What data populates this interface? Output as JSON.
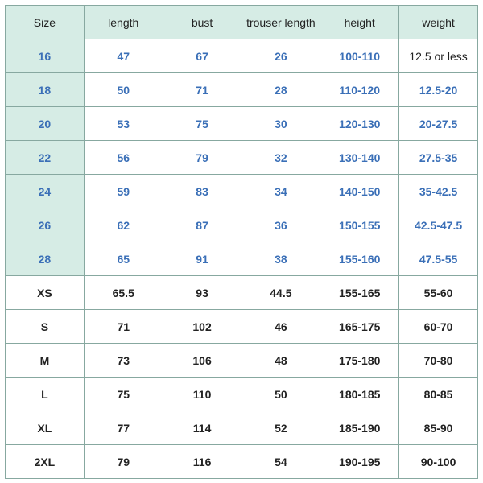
{
  "type": "table",
  "colors": {
    "header_bg": "#d6ece5",
    "border": "#87a8a0",
    "kid_text": "#3a6fb7",
    "adult_text": "#222222",
    "bg": "#ffffff"
  },
  "columns": [
    "Size",
    "length",
    "bust",
    "trouser length",
    "height",
    "weight"
  ],
  "kid_rows": [
    {
      "size": "16",
      "length": "47",
      "bust": "67",
      "trouser": "26",
      "height": "100-110",
      "weight": "12.5 or less",
      "weight_plain": true
    },
    {
      "size": "18",
      "length": "50",
      "bust": "71",
      "trouser": "28",
      "height": "110-120",
      "weight": "12.5-20"
    },
    {
      "size": "20",
      "length": "53",
      "bust": "75",
      "trouser": "30",
      "height": "120-130",
      "weight": "20-27.5"
    },
    {
      "size": "22",
      "length": "56",
      "bust": "79",
      "trouser": "32",
      "height": "130-140",
      "weight": "27.5-35"
    },
    {
      "size": "24",
      "length": "59",
      "bust": "83",
      "trouser": "34",
      "height": "140-150",
      "weight": "35-42.5"
    },
    {
      "size": "26",
      "length": "62",
      "bust": "87",
      "trouser": "36",
      "height": "150-155",
      "weight": "42.5-47.5"
    },
    {
      "size": "28",
      "length": "65",
      "bust": "91",
      "trouser": "38",
      "height": "155-160",
      "weight": "47.5-55"
    }
  ],
  "adult_rows": [
    {
      "size": "XS",
      "length": "65.5",
      "bust": "93",
      "trouser": "44.5",
      "height": "155-165",
      "weight": "55-60"
    },
    {
      "size": "S",
      "length": "71",
      "bust": "102",
      "trouser": "46",
      "height": "165-175",
      "weight": "60-70"
    },
    {
      "size": "M",
      "length": "73",
      "bust": "106",
      "trouser": "48",
      "height": "175-180",
      "weight": "70-80"
    },
    {
      "size": "L",
      "length": "75",
      "bust": "110",
      "trouser": "50",
      "height": "180-185",
      "weight": "80-85"
    },
    {
      "size": "XL",
      "length": "77",
      "bust": "114",
      "trouser": "52",
      "height": "185-190",
      "weight": "85-90"
    },
    {
      "size": "2XL",
      "length": "79",
      "bust": "116",
      "trouser": "54",
      "height": "190-195",
      "weight": "90-100"
    }
  ]
}
